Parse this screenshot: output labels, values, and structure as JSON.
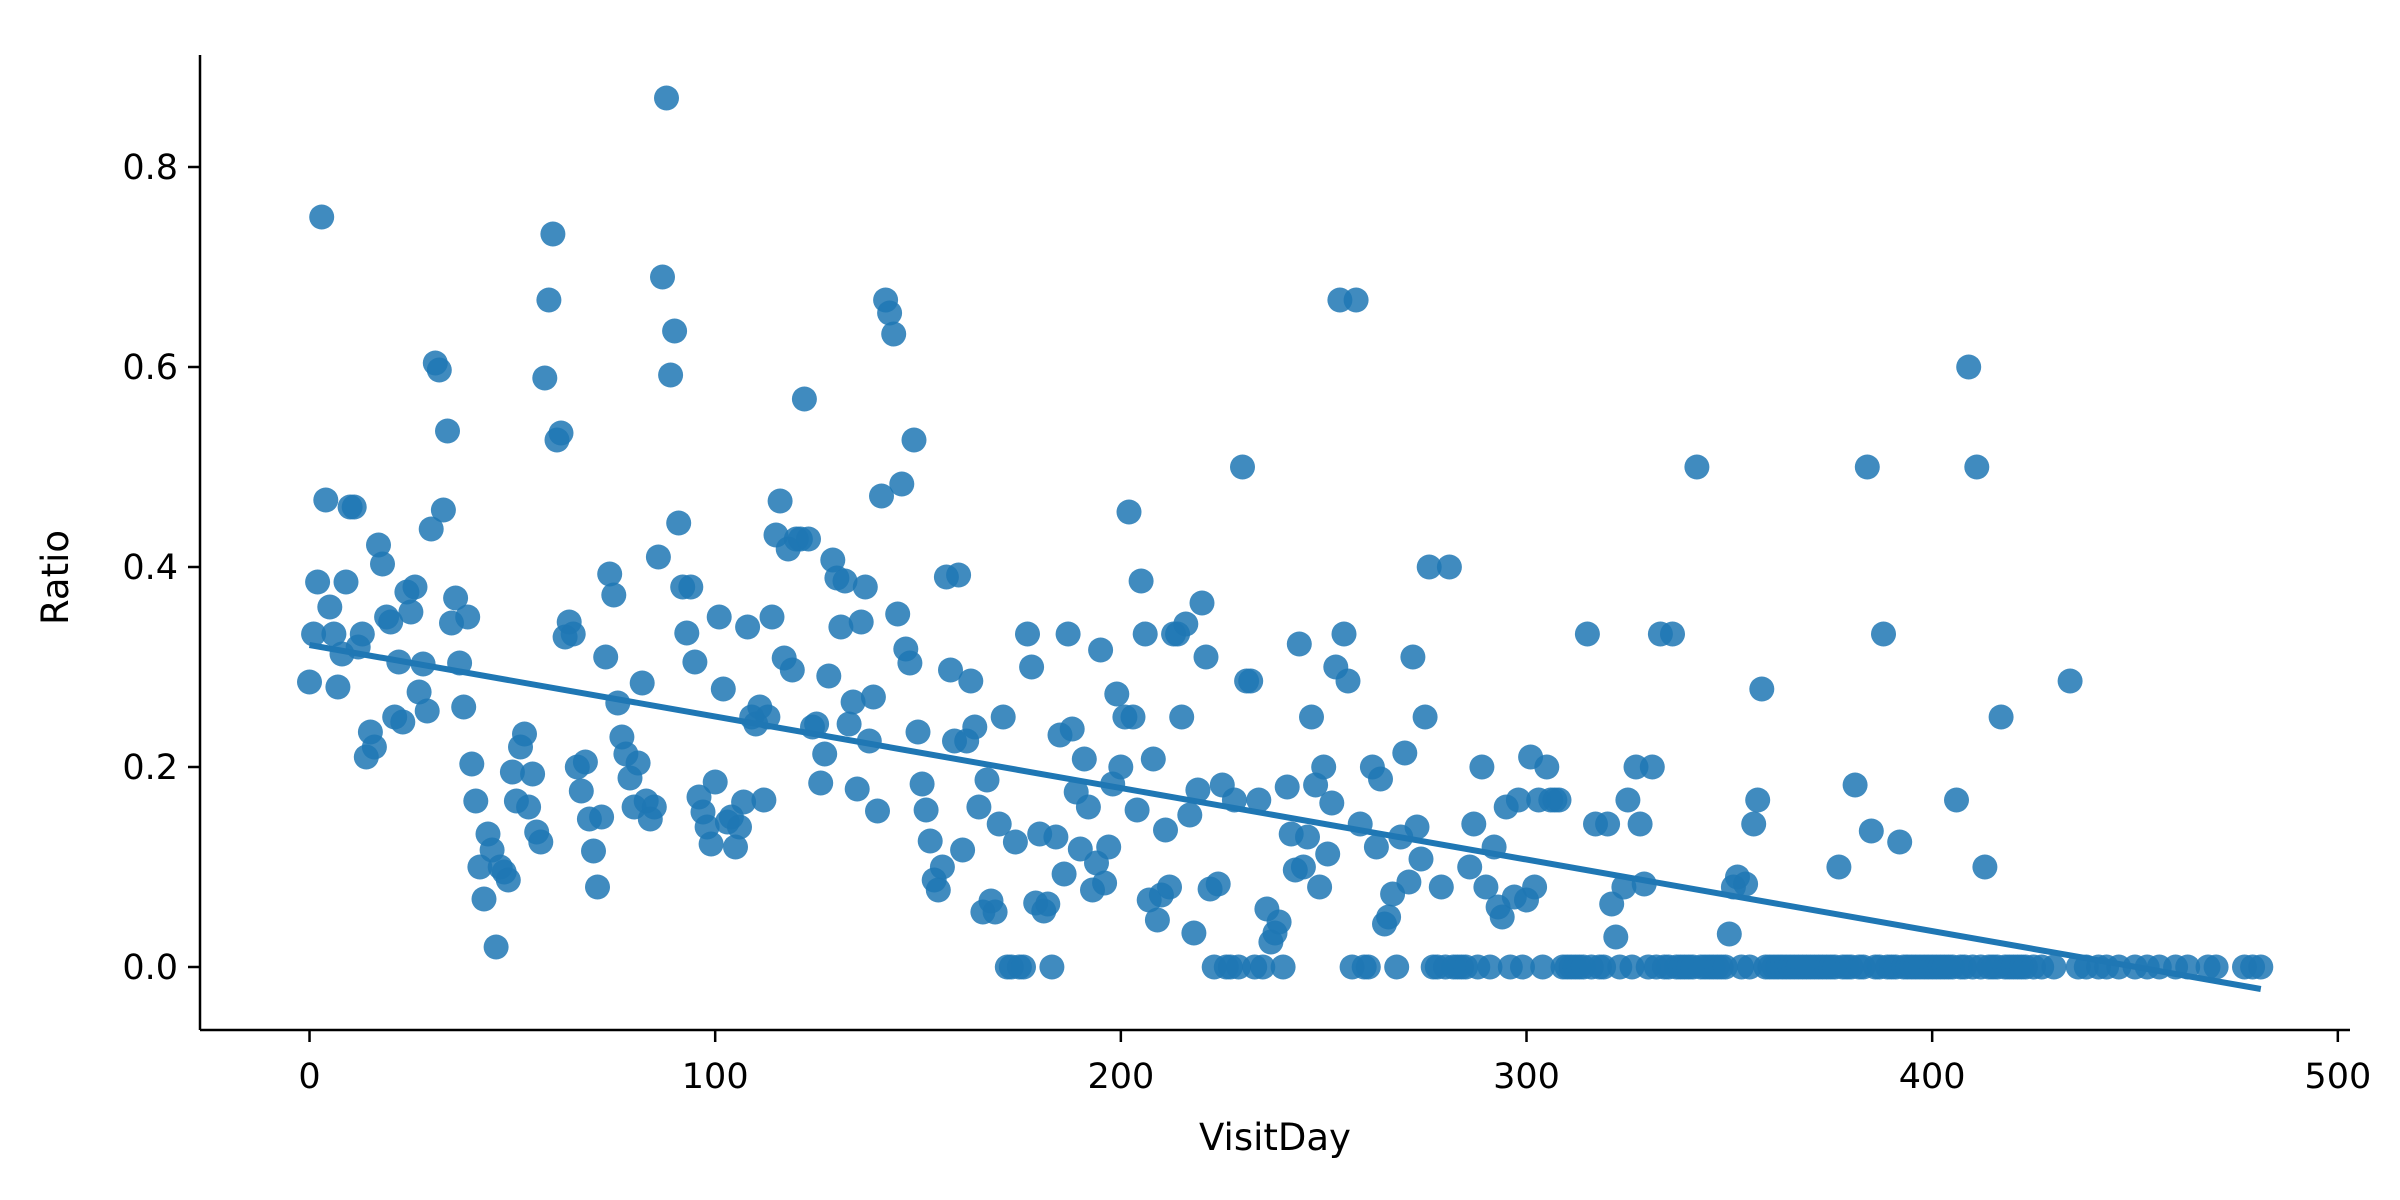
{
  "chart_data": {
    "type": "scatter",
    "title": "",
    "xlabel": "VisitDay",
    "ylabel": "Ratio",
    "xlim": [
      -27,
      503
    ],
    "ylim": [
      -0.063,
      0.912
    ],
    "xticks": [
      0,
      100,
      200,
      300,
      400,
      500
    ],
    "yticks": [
      0.0,
      0.2,
      0.4,
      0.6,
      0.8
    ],
    "xtick_labels": [
      "0",
      "100",
      "200",
      "300",
      "400",
      "500"
    ],
    "ytick_labels": [
      "0.0",
      "0.2",
      "0.4",
      "0.6",
      "0.8"
    ],
    "grid": false,
    "legend": "none",
    "color": "#1f77b4",
    "regression_line": {
      "x": [
        0,
        481
      ],
      "y": [
        0.322,
        -0.022
      ]
    },
    "points": [
      [
        0,
        0.285
      ],
      [
        1,
        0.333
      ],
      [
        2,
        0.385
      ],
      [
        3,
        0.75
      ],
      [
        4,
        0.467
      ],
      [
        5,
        0.36
      ],
      [
        6,
        0.333
      ],
      [
        7,
        0.28
      ],
      [
        8,
        0.313
      ],
      [
        9,
        0.385
      ],
      [
        10,
        0.46
      ],
      [
        11,
        0.46
      ],
      [
        12,
        0.32
      ],
      [
        13,
        0.333
      ],
      [
        14,
        0.21
      ],
      [
        15,
        0.235
      ],
      [
        16,
        0.22
      ],
      [
        17,
        0.422
      ],
      [
        18,
        0.403
      ],
      [
        19,
        0.35
      ],
      [
        20,
        0.345
      ],
      [
        21,
        0.25
      ],
      [
        22,
        0.305
      ],
      [
        23,
        0.245
      ],
      [
        24,
        0.375
      ],
      [
        25,
        0.355
      ],
      [
        26,
        0.38
      ],
      [
        27,
        0.275
      ],
      [
        28,
        0.303
      ],
      [
        29,
        0.256
      ],
      [
        30,
        0.438
      ],
      [
        31,
        0.604
      ],
      [
        32,
        0.597
      ],
      [
        33,
        0.457
      ],
      [
        34,
        0.536
      ],
      [
        35,
        0.344
      ],
      [
        36,
        0.369
      ],
      [
        37,
        0.304
      ],
      [
        38,
        0.26
      ],
      [
        39,
        0.35
      ],
      [
        40,
        0.203
      ],
      [
        41,
        0.166
      ],
      [
        42,
        0.1
      ],
      [
        43,
        0.068
      ],
      [
        44,
        0.133
      ],
      [
        45,
        0.117
      ],
      [
        46,
        0.02
      ],
      [
        47,
        0.1
      ],
      [
        48,
        0.095
      ],
      [
        49,
        0.087
      ],
      [
        50,
        0.195
      ],
      [
        51,
        0.166
      ],
      [
        52,
        0.22
      ],
      [
        53,
        0.233
      ],
      [
        54,
        0.16
      ],
      [
        55,
        0.193
      ],
      [
        56,
        0.135
      ],
      [
        57,
        0.125
      ],
      [
        58,
        0.589
      ],
      [
        59,
        0.667
      ],
      [
        60,
        0.733
      ],
      [
        61,
        0.527
      ],
      [
        62,
        0.534
      ],
      [
        63,
        0.33
      ],
      [
        64,
        0.345
      ],
      [
        65,
        0.333
      ],
      [
        66,
        0.2
      ],
      [
        67,
        0.176
      ],
      [
        68,
        0.205
      ],
      [
        69,
        0.148
      ],
      [
        70,
        0.116
      ],
      [
        71,
        0.08
      ],
      [
        72,
        0.15
      ],
      [
        73,
        0.31
      ],
      [
        74,
        0.393
      ],
      [
        75,
        0.372
      ],
      [
        76,
        0.264
      ],
      [
        77,
        0.23
      ],
      [
        78,
        0.213
      ],
      [
        79,
        0.189
      ],
      [
        80,
        0.16
      ],
      [
        81,
        0.204
      ],
      [
        82,
        0.284
      ],
      [
        83,
        0.166
      ],
      [
        84,
        0.148
      ],
      [
        85,
        0.16
      ],
      [
        86,
        0.41
      ],
      [
        87,
        0.69
      ],
      [
        88,
        0.869
      ],
      [
        89,
        0.592
      ],
      [
        90,
        0.636
      ],
      [
        91,
        0.444
      ],
      [
        92,
        0.38
      ],
      [
        93,
        0.334
      ],
      [
        94,
        0.38
      ],
      [
        95,
        0.305
      ],
      [
        96,
        0.17
      ],
      [
        97,
        0.155
      ],
      [
        98,
        0.14
      ],
      [
        99,
        0.123
      ],
      [
        100,
        0.185
      ],
      [
        101,
        0.35
      ],
      [
        102,
        0.278
      ],
      [
        103,
        0.145
      ],
      [
        104,
        0.15
      ],
      [
        105,
        0.12
      ],
      [
        106,
        0.14
      ],
      [
        107,
        0.165
      ],
      [
        108,
        0.34
      ],
      [
        109,
        0.25
      ],
      [
        110,
        0.243
      ],
      [
        111,
        0.26
      ],
      [
        112,
        0.167
      ],
      [
        113,
        0.25
      ],
      [
        114,
        0.35
      ],
      [
        115,
        0.432
      ],
      [
        116,
        0.466
      ],
      [
        117,
        0.309
      ],
      [
        118,
        0.418
      ],
      [
        119,
        0.297
      ],
      [
        120,
        0.428
      ],
      [
        121,
        0.428
      ],
      [
        122,
        0.568
      ],
      [
        123,
        0.428
      ],
      [
        124,
        0.24
      ],
      [
        125,
        0.243
      ],
      [
        126,
        0.184
      ],
      [
        127,
        0.213
      ],
      [
        128,
        0.291
      ],
      [
        129,
        0.407
      ],
      [
        130,
        0.389
      ],
      [
        131,
        0.34
      ],
      [
        132,
        0.386
      ],
      [
        133,
        0.243
      ],
      [
        134,
        0.265
      ],
      [
        135,
        0.178
      ],
      [
        136,
        0.345
      ],
      [
        137,
        0.38
      ],
      [
        138,
        0.226
      ],
      [
        139,
        0.27
      ],
      [
        140,
        0.156
      ],
      [
        141,
        0.471
      ],
      [
        142,
        0.667
      ],
      [
        143,
        0.654
      ],
      [
        144,
        0.633
      ],
      [
        145,
        0.353
      ],
      [
        146,
        0.483
      ],
      [
        147,
        0.318
      ],
      [
        148,
        0.304
      ],
      [
        149,
        0.527
      ],
      [
        150,
        0.235
      ],
      [
        151,
        0.183
      ],
      [
        152,
        0.157
      ],
      [
        153,
        0.126
      ],
      [
        154,
        0.087
      ],
      [
        155,
        0.077
      ],
      [
        156,
        0.1
      ],
      [
        157,
        0.39
      ],
      [
        158,
        0.297
      ],
      [
        159,
        0.226
      ],
      [
        160,
        0.392
      ],
      [
        161,
        0.117
      ],
      [
        162,
        0.226
      ],
      [
        163,
        0.286
      ],
      [
        164,
        0.24
      ],
      [
        165,
        0.16
      ],
      [
        166,
        0.055
      ],
      [
        167,
        0.187
      ],
      [
        168,
        0.066
      ],
      [
        169,
        0.055
      ],
      [
        170,
        0.143
      ],
      [
        171,
        0.25
      ],
      [
        172,
        0.0
      ],
      [
        173,
        0.0
      ],
      [
        174,
        0.125
      ],
      [
        175,
        0.0
      ],
      [
        176,
        0.0
      ],
      [
        177,
        0.333
      ],
      [
        178,
        0.3
      ],
      [
        179,
        0.064
      ],
      [
        180,
        0.133
      ],
      [
        181,
        0.056
      ],
      [
        182,
        0.063
      ],
      [
        183,
        0.0
      ],
      [
        184,
        0.13
      ],
      [
        185,
        0.232
      ],
      [
        186,
        0.093
      ],
      [
        187,
        0.333
      ],
      [
        188,
        0.238
      ],
      [
        189,
        0.175
      ],
      [
        190,
        0.118
      ],
      [
        191,
        0.208
      ],
      [
        192,
        0.16
      ],
      [
        193,
        0.077
      ],
      [
        194,
        0.104
      ],
      [
        195,
        0.317
      ],
      [
        196,
        0.084
      ],
      [
        197,
        0.12
      ],
      [
        198,
        0.183
      ],
      [
        199,
        0.273
      ],
      [
        200,
        0.2
      ],
      [
        201,
        0.25
      ],
      [
        202,
        0.455
      ],
      [
        203,
        0.25
      ],
      [
        204,
        0.157
      ],
      [
        205,
        0.386
      ],
      [
        206,
        0.333
      ],
      [
        207,
        0.067
      ],
      [
        208,
        0.208
      ],
      [
        209,
        0.047
      ],
      [
        210,
        0.072
      ],
      [
        211,
        0.137
      ],
      [
        212,
        0.08
      ],
      [
        213,
        0.333
      ],
      [
        214,
        0.333
      ],
      [
        215,
        0.25
      ],
      [
        216,
        0.343
      ],
      [
        217,
        0.152
      ],
      [
        218,
        0.034
      ],
      [
        219,
        0.177
      ],
      [
        220,
        0.364
      ],
      [
        221,
        0.31
      ],
      [
        222,
        0.078
      ],
      [
        223,
        0.0
      ],
      [
        224,
        0.083
      ],
      [
        225,
        0.182
      ],
      [
        226,
        0.0
      ],
      [
        227,
        0.0
      ],
      [
        228,
        0.167
      ],
      [
        229,
        0.0
      ],
      [
        230,
        0.5
      ],
      [
        231,
        0.286
      ],
      [
        232,
        0.286
      ],
      [
        233,
        0.0
      ],
      [
        234,
        0.167
      ],
      [
        235,
        0.0
      ],
      [
        236,
        0.058
      ],
      [
        237,
        0.025
      ],
      [
        238,
        0.034
      ],
      [
        239,
        0.045
      ],
      [
        240,
        0.0
      ],
      [
        241,
        0.18
      ],
      [
        242,
        0.133
      ],
      [
        243,
        0.097
      ],
      [
        244,
        0.323
      ],
      [
        245,
        0.1
      ],
      [
        246,
        0.13
      ],
      [
        247,
        0.25
      ],
      [
        248,
        0.182
      ],
      [
        249,
        0.08
      ],
      [
        250,
        0.2
      ],
      [
        251,
        0.113
      ],
      [
        252,
        0.164
      ],
      [
        253,
        0.3
      ],
      [
        254,
        0.667
      ],
      [
        255,
        0.333
      ],
      [
        256,
        0.286
      ],
      [
        257,
        0.0
      ],
      [
        258,
        0.667
      ],
      [
        259,
        0.143
      ],
      [
        260,
        0.0
      ],
      [
        261,
        0.0
      ],
      [
        262,
        0.2
      ],
      [
        263,
        0.12
      ],
      [
        264,
        0.188
      ],
      [
        265,
        0.043
      ],
      [
        266,
        0.05
      ],
      [
        267,
        0.073
      ],
      [
        268,
        0.0
      ],
      [
        269,
        0.13
      ],
      [
        270,
        0.214
      ],
      [
        271,
        0.085
      ],
      [
        272,
        0.31
      ],
      [
        273,
        0.14
      ],
      [
        274,
        0.108
      ],
      [
        275,
        0.25
      ],
      [
        276,
        0.4
      ],
      [
        277,
        0.0
      ],
      [
        278,
        0.0
      ],
      [
        279,
        0.08
      ],
      [
        280,
        0.0
      ],
      [
        281,
        0.4
      ],
      [
        282,
        0.0
      ],
      [
        283,
        0.0
      ],
      [
        284,
        0.0
      ],
      [
        285,
        0.0
      ],
      [
        286,
        0.1
      ],
      [
        287,
        0.143
      ],
      [
        288,
        0.0
      ],
      [
        289,
        0.2
      ],
      [
        290,
        0.08
      ],
      [
        291,
        0.0
      ],
      [
        292,
        0.12
      ],
      [
        293,
        0.06
      ],
      [
        294,
        0.05
      ],
      [
        295,
        0.16
      ],
      [
        296,
        0.0
      ],
      [
        297,
        0.07
      ],
      [
        298,
        0.167
      ],
      [
        299,
        0.0
      ],
      [
        300,
        0.067
      ],
      [
        301,
        0.21
      ],
      [
        302,
        0.08
      ],
      [
        303,
        0.167
      ],
      [
        304,
        0.0
      ],
      [
        305,
        0.2
      ],
      [
        306,
        0.167
      ],
      [
        307,
        0.167
      ],
      [
        308,
        0.167
      ],
      [
        309,
        0.0
      ],
      [
        310,
        0.0
      ],
      [
        311,
        0.0
      ],
      [
        312,
        0.0
      ],
      [
        313,
        0.0
      ],
      [
        314,
        0.0
      ],
      [
        315,
        0.333
      ],
      [
        316,
        0.0
      ],
      [
        317,
        0.143
      ],
      [
        318,
        0.0
      ],
      [
        319,
        0.0
      ],
      [
        320,
        0.143
      ],
      [
        321,
        0.063
      ],
      [
        322,
        0.03
      ],
      [
        323,
        0.0
      ],
      [
        324,
        0.08
      ],
      [
        325,
        0.167
      ],
      [
        326,
        0.0
      ],
      [
        327,
        0.2
      ],
      [
        328,
        0.143
      ],
      [
        329,
        0.083
      ],
      [
        330,
        0.0
      ],
      [
        331,
        0.2
      ],
      [
        332,
        0.0
      ],
      [
        333,
        0.333
      ],
      [
        334,
        0.0
      ],
      [
        335,
        0.0
      ],
      [
        336,
        0.333
      ],
      [
        337,
        0.0
      ],
      [
        338,
        0.0
      ],
      [
        339,
        0.0
      ],
      [
        340,
        0.0
      ],
      [
        341,
        0.0
      ],
      [
        342,
        0.5
      ],
      [
        343,
        0.0
      ],
      [
        344,
        0.0
      ],
      [
        345,
        0.0
      ],
      [
        346,
        0.0
      ],
      [
        347,
        0.0
      ],
      [
        348,
        0.0
      ],
      [
        349,
        0.0
      ],
      [
        350,
        0.033
      ],
      [
        351,
        0.08
      ],
      [
        352,
        0.09
      ],
      [
        353,
        0.0
      ],
      [
        354,
        0.083
      ],
      [
        355,
        0.0
      ],
      [
        356,
        0.143
      ],
      [
        357,
        0.167
      ],
      [
        358,
        0.278
      ],
      [
        359,
        0.0
      ],
      [
        360,
        0.0
      ],
      [
        361,
        0.0
      ],
      [
        362,
        0.0
      ],
      [
        363,
        0.0
      ],
      [
        364,
        0.0
      ],
      [
        365,
        0.0
      ],
      [
        366,
        0.0
      ],
      [
        367,
        0.0
      ],
      [
        368,
        0.0
      ],
      [
        369,
        0.0
      ],
      [
        370,
        0.0
      ],
      [
        371,
        0.0
      ],
      [
        372,
        0.0
      ],
      [
        373,
        0.0
      ],
      [
        374,
        0.0
      ],
      [
        375,
        0.0
      ],
      [
        376,
        0.0
      ],
      [
        377,
        0.1
      ],
      [
        378,
        0.0
      ],
      [
        379,
        0.0
      ],
      [
        380,
        0.0
      ],
      [
        381,
        0.182
      ],
      [
        382,
        0.0
      ],
      [
        383,
        0.0
      ],
      [
        384,
        0.5
      ],
      [
        385,
        0.136
      ],
      [
        386,
        0.0
      ],
      [
        387,
        0.0
      ],
      [
        388,
        0.333
      ],
      [
        389,
        0.0
      ],
      [
        390,
        0.0
      ],
      [
        391,
        0.0
      ],
      [
        392,
        0.125
      ],
      [
        393,
        0.0
      ],
      [
        394,
        0.0
      ],
      [
        395,
        0.0
      ],
      [
        396,
        0.0
      ],
      [
        397,
        0.0
      ],
      [
        398,
        0.0
      ],
      [
        399,
        0.0
      ],
      [
        400,
        0.0
      ],
      [
        401,
        0.0
      ],
      [
        402,
        0.0
      ],
      [
        403,
        0.0
      ],
      [
        404,
        0.0
      ],
      [
        405,
        0.0
      ],
      [
        406,
        0.167
      ],
      [
        407,
        0.0
      ],
      [
        408,
        0.0
      ],
      [
        409,
        0.6
      ],
      [
        410,
        0.0
      ],
      [
        411,
        0.5
      ],
      [
        412,
        0.0
      ],
      [
        413,
        0.1
      ],
      [
        414,
        0.0
      ],
      [
        415,
        0.0
      ],
      [
        416,
        0.0
      ],
      [
        417,
        0.25
      ],
      [
        418,
        0.0
      ],
      [
        419,
        0.0
      ],
      [
        420,
        0.0
      ],
      [
        421,
        0.0
      ],
      [
        422,
        0.0
      ],
      [
        423,
        0.0
      ],
      [
        425,
        0.0
      ],
      [
        427,
        0.0
      ],
      [
        430,
        0.0
      ],
      [
        434,
        0.286
      ],
      [
        436,
        0.0
      ],
      [
        438,
        0.0
      ],
      [
        441,
        0.0
      ],
      [
        443,
        0.0
      ],
      [
        446,
        0.0
      ],
      [
        450,
        0.0
      ],
      [
        453,
        0.0
      ],
      [
        456,
        0.0
      ],
      [
        460,
        0.0
      ],
      [
        463,
        0.0
      ],
      [
        468,
        0.0
      ],
      [
        470,
        0.0
      ],
      [
        477,
        0.0
      ],
      [
        479,
        0.0
      ],
      [
        481,
        0.0
      ]
    ]
  }
}
